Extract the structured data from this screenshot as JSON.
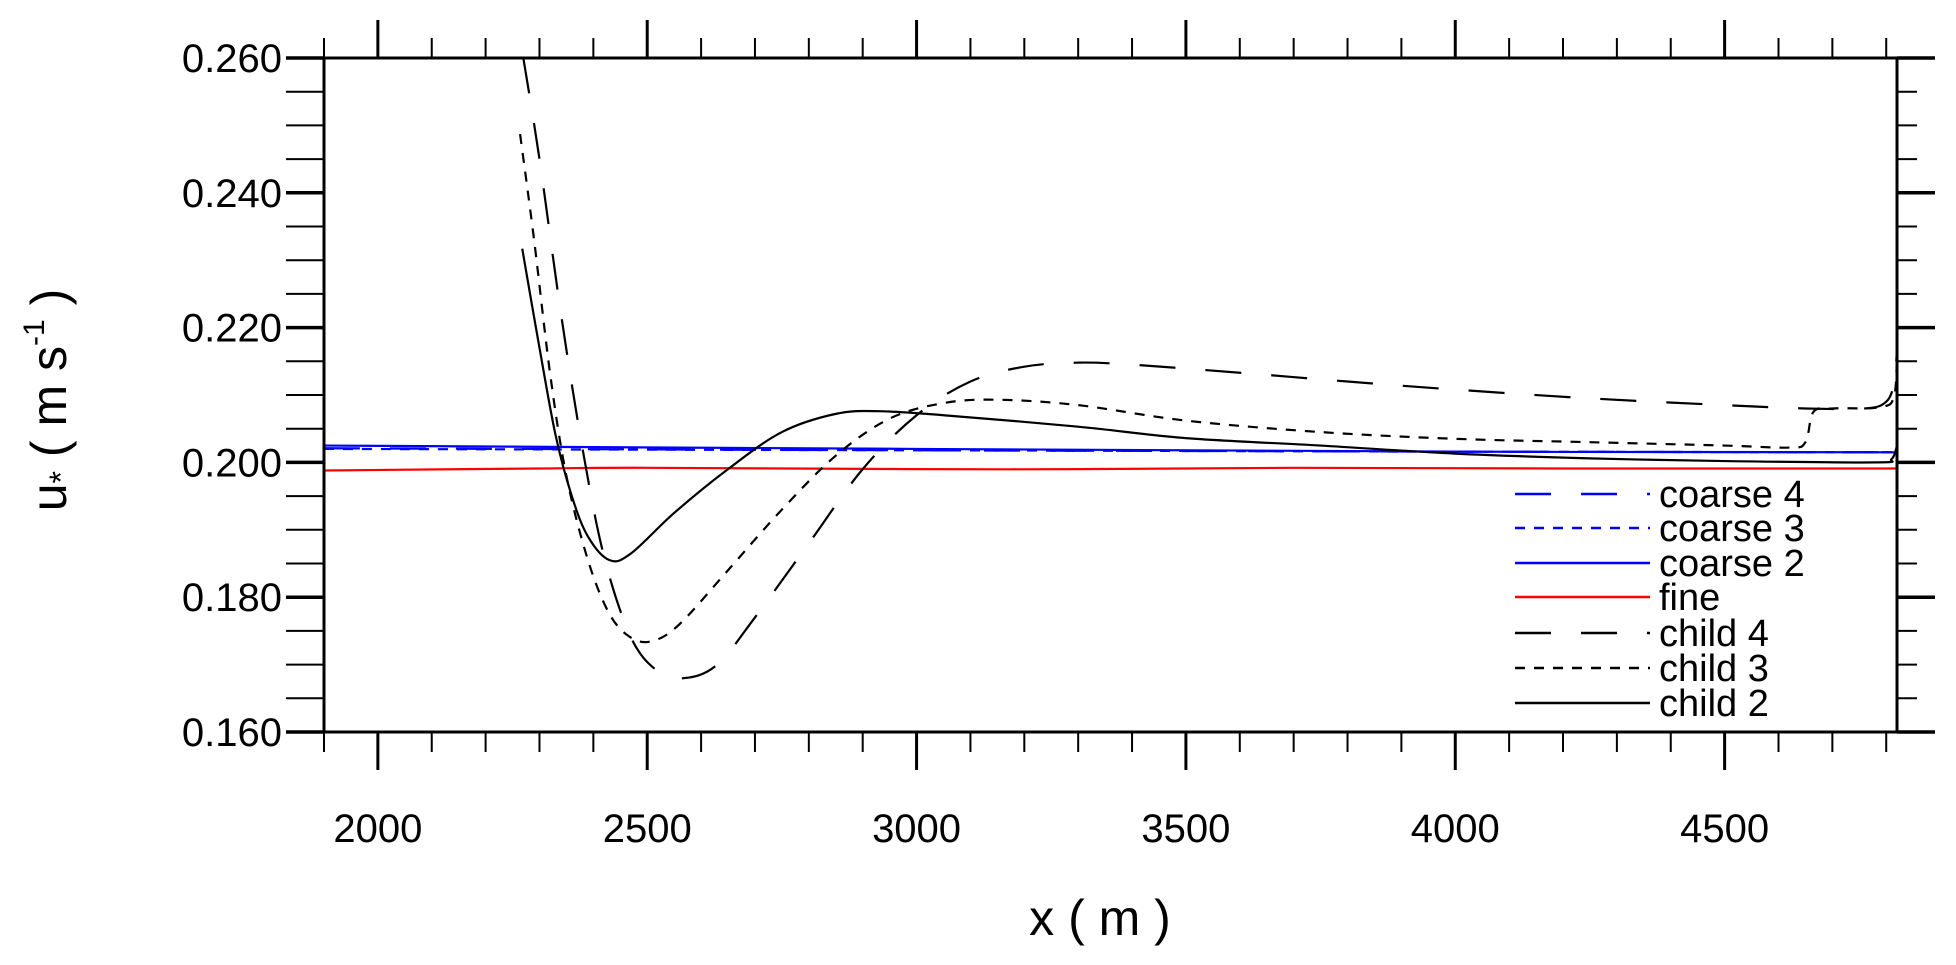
{
  "chart_data": {
    "type": "line",
    "title": "",
    "xlabel": "x ( m )",
    "ylabel_main": "u",
    "ylabel_sub": "*",
    "ylabel_units": "( m s",
    "ylabel_exp": "-1",
    "ylabel_close": ")",
    "xlim": [
      1900,
      4820
    ],
    "ylim": [
      0.16,
      0.26
    ],
    "xticks": [
      2000,
      2500,
      3000,
      3500,
      4000,
      4500
    ],
    "xtick_labels": [
      "2000",
      "2500",
      "3000",
      "3500",
      "4000",
      "4500"
    ],
    "yticks": [
      0.16,
      0.18,
      0.2,
      0.22,
      0.24,
      0.26
    ],
    "ytick_labels": [
      "0.160",
      "0.180",
      "0.200",
      "0.220",
      "0.240",
      "0.260"
    ],
    "x_minor_step": 100,
    "y_minor_step": 0.005,
    "grid": false,
    "legend_position": "bottom-right",
    "series": [
      {
        "name": "coarse 4",
        "color": "#0000ff",
        "dash": "long-dash",
        "points": [
          [
            1900,
            0.2021
          ],
          [
            3000,
            0.2018
          ],
          [
            4000,
            0.2016
          ],
          [
            4820,
            0.2015
          ]
        ]
      },
      {
        "name": "coarse 3",
        "color": "#0000ff",
        "dash": "dot",
        "points": [
          [
            1900,
            0.202
          ],
          [
            3000,
            0.2018
          ],
          [
            4000,
            0.2016
          ],
          [
            4820,
            0.2015
          ]
        ]
      },
      {
        "name": "coarse 2",
        "color": "#0000ff",
        "dash": "solid",
        "points": [
          [
            1900,
            0.2025
          ],
          [
            3000,
            0.202
          ],
          [
            4000,
            0.2016
          ],
          [
            4820,
            0.2015
          ]
        ]
      },
      {
        "name": "fine",
        "color": "#ff0000",
        "dash": "solid",
        "points": [
          [
            1900,
            0.1988
          ],
          [
            2300,
            0.1991
          ],
          [
            2500,
            0.1992
          ],
          [
            3000,
            0.199
          ],
          [
            3300,
            0.199
          ],
          [
            3700,
            0.1992
          ],
          [
            4200,
            0.1991
          ],
          [
            4820,
            0.1991
          ]
        ]
      },
      {
        "name": "child 4",
        "color": "#000000",
        "dash": "long-dash",
        "points": [
          [
            2270,
            0.26
          ],
          [
            2300,
            0.245
          ],
          [
            2340,
            0.222
          ],
          [
            2380,
            0.202
          ],
          [
            2420,
            0.186
          ],
          [
            2470,
            0.174
          ],
          [
            2520,
            0.169
          ],
          [
            2570,
            0.168
          ],
          [
            2630,
            0.17
          ],
          [
            2700,
            0.177
          ],
          [
            2800,
            0.188
          ],
          [
            2900,
            0.199
          ],
          [
            3000,
            0.207
          ],
          [
            3100,
            0.212
          ],
          [
            3200,
            0.2142
          ],
          [
            3300,
            0.2148
          ],
          [
            3400,
            0.2145
          ],
          [
            3600,
            0.2133
          ],
          [
            3800,
            0.212
          ],
          [
            4000,
            0.2108
          ],
          [
            4250,
            0.2095
          ],
          [
            4500,
            0.2085
          ],
          [
            4650,
            0.208
          ],
          [
            4760,
            0.208
          ],
          [
            4800,
            0.209
          ],
          [
            4815,
            0.212
          ],
          [
            4820,
            0.217
          ]
        ]
      },
      {
        "name": "child 3",
        "color": "#000000",
        "dash": "dot",
        "points": [
          [
            2264,
            0.2487
          ],
          [
            2290,
            0.233
          ],
          [
            2320,
            0.213
          ],
          [
            2350,
            0.198
          ],
          [
            2390,
            0.1855
          ],
          [
            2430,
            0.1775
          ],
          [
            2470,
            0.174
          ],
          [
            2510,
            0.1735
          ],
          [
            2560,
            0.176
          ],
          [
            2650,
            0.184
          ],
          [
            2750,
            0.193
          ],
          [
            2850,
            0.201
          ],
          [
            2950,
            0.2065
          ],
          [
            3050,
            0.2088
          ],
          [
            3150,
            0.2093
          ],
          [
            3300,
            0.2085
          ],
          [
            3500,
            0.2062
          ],
          [
            3750,
            0.2045
          ],
          [
            4000,
            0.2035
          ],
          [
            4250,
            0.203
          ],
          [
            4500,
            0.2025
          ],
          [
            4620,
            0.2022
          ],
          [
            4650,
            0.203
          ],
          [
            4665,
            0.2075
          ],
          [
            4700,
            0.208
          ],
          [
            4790,
            0.2082
          ],
          [
            4815,
            0.21
          ],
          [
            4820,
            0.217
          ]
        ]
      },
      {
        "name": "child 2",
        "color": "#000000",
        "dash": "solid",
        "points": [
          [
            2268,
            0.2317
          ],
          [
            2300,
            0.217
          ],
          [
            2330,
            0.204
          ],
          [
            2360,
            0.195
          ],
          [
            2390,
            0.189
          ],
          [
            2430,
            0.1855
          ],
          [
            2470,
            0.1865
          ],
          [
            2550,
            0.1925
          ],
          [
            2650,
            0.199
          ],
          [
            2750,
            0.2045
          ],
          [
            2850,
            0.2072
          ],
          [
            2930,
            0.2076
          ],
          [
            3050,
            0.207
          ],
          [
            3300,
            0.2053
          ],
          [
            3500,
            0.2036
          ],
          [
            3750,
            0.2025
          ],
          [
            4000,
            0.2013
          ],
          [
            4250,
            0.2006
          ],
          [
            4500,
            0.2002
          ],
          [
            4780,
            0.2
          ],
          [
            4810,
            0.2005
          ],
          [
            4820,
            0.2025
          ]
        ]
      }
    ]
  }
}
